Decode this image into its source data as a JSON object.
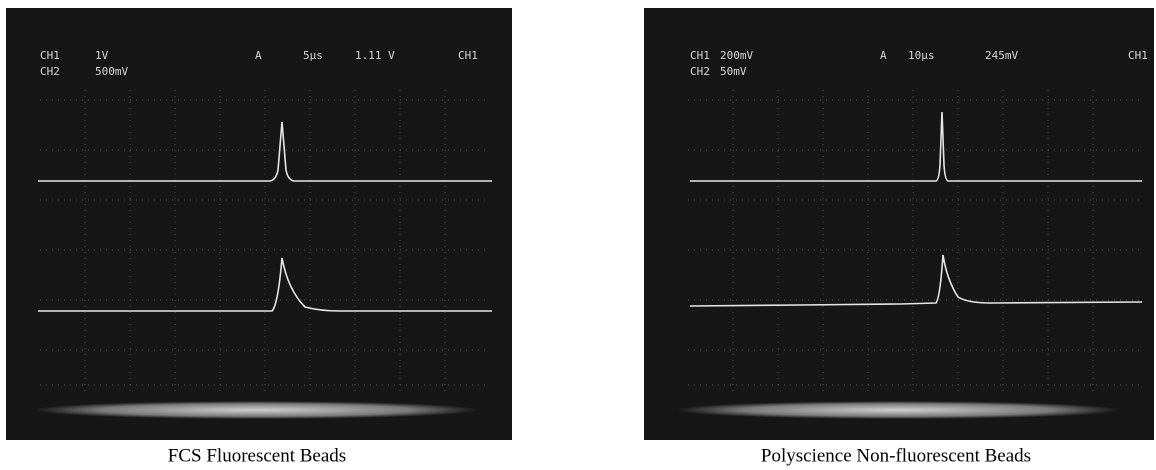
{
  "panels": [
    {
      "readout": [
        [
          "CH1",
          "1V",
          "A",
          "5µs",
          "1.11 V",
          "CH1"
        ],
        [
          "CH2",
          "500mV"
        ]
      ],
      "caption": "FCS Fluorescent Beads"
    },
    {
      "readout": [
        [
          "CH1",
          "200mV",
          "A",
          "10µs",
          "245mV",
          "CH1"
        ],
        [
          "CH2",
          "50mV"
        ]
      ],
      "caption": "Polyscience Non-fluorescent Beads"
    }
  ]
}
